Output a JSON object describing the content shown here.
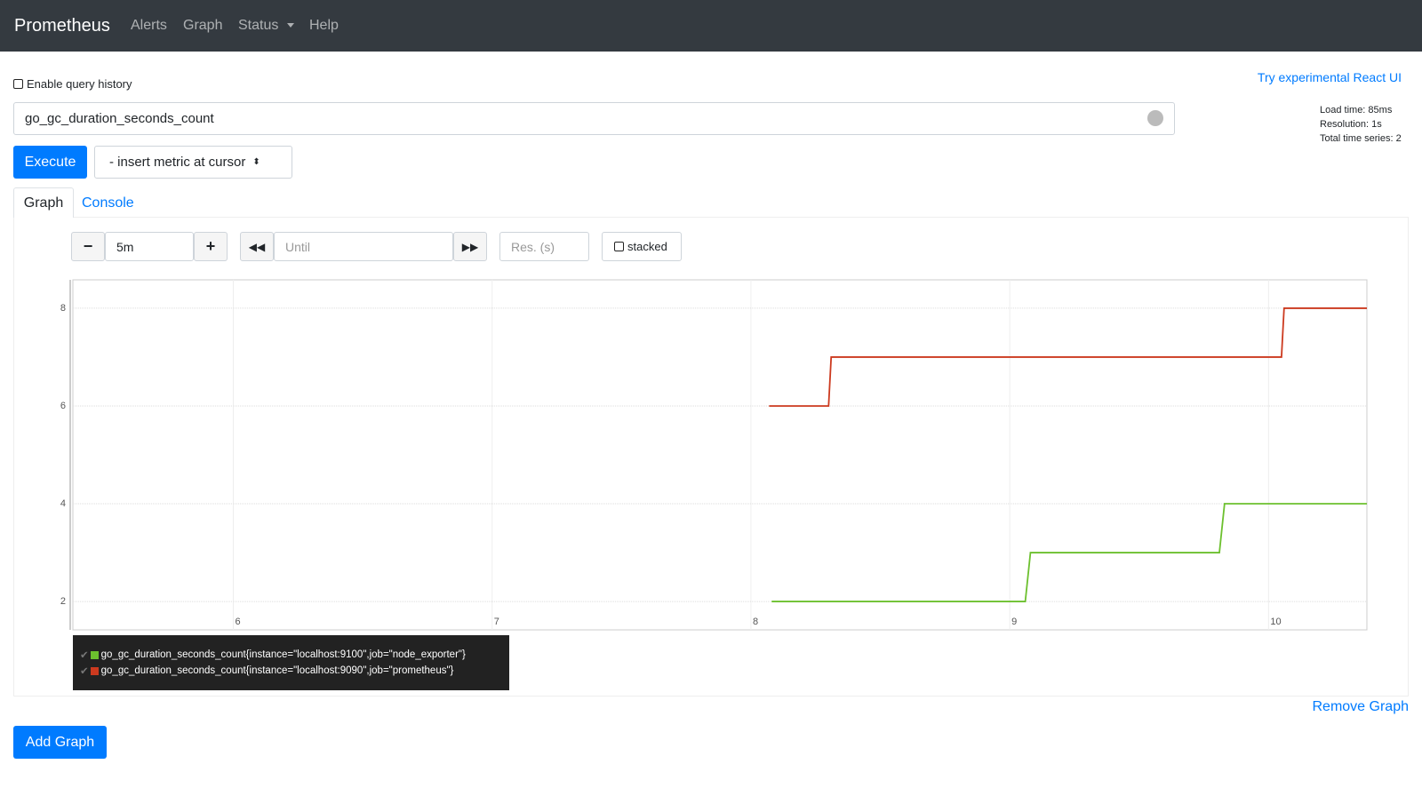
{
  "navbar": {
    "brand": "Prometheus",
    "items": [
      "Alerts",
      "Graph",
      "Status",
      "Help"
    ]
  },
  "query_history": "Enable query history",
  "react_ui_link": "Try experimental React UI",
  "expression": "go_gc_duration_seconds_count",
  "stats": [
    "Load time: 85ms",
    "Resolution: 1s",
    "Total time series: 2"
  ],
  "execute": "Execute",
  "metric_select": "- insert metric at cursor",
  "tabs": [
    "Graph",
    "Console"
  ],
  "controls": {
    "range": "5m",
    "until": "Until",
    "resolution": "Res. (s)",
    "stacked": "stacked"
  },
  "remove_graph": "Remove Graph",
  "add_graph": "Add Graph",
  "chart_data": {
    "type": "line",
    "xlim": [
      5.38,
      10.38
    ],
    "xticks": [
      6,
      7,
      8,
      9,
      10
    ],
    "ylim": [
      1.42,
      8.58
    ],
    "yticks": [
      2,
      4,
      6,
      8
    ],
    "grid": true,
    "series": [
      {
        "name": "go_gc_duration_seconds_count{instance=\"localhost:9100\",job=\"node_exporter\"}",
        "color": "#6cc02e",
        "x": [
          8.08,
          9.06,
          9.08,
          9.81,
          9.83,
          10.38
        ],
        "values": [
          2,
          2,
          3,
          3,
          4,
          4
        ]
      },
      {
        "name": "go_gc_duration_seconds_count{instance=\"localhost:9090\",job=\"prometheus\"}",
        "color": "#cc3a1f",
        "x": [
          8.07,
          8.3,
          8.31,
          10.05,
          10.06,
          10.38
        ],
        "values": [
          6,
          6,
          7,
          7,
          8,
          8
        ]
      }
    ]
  }
}
